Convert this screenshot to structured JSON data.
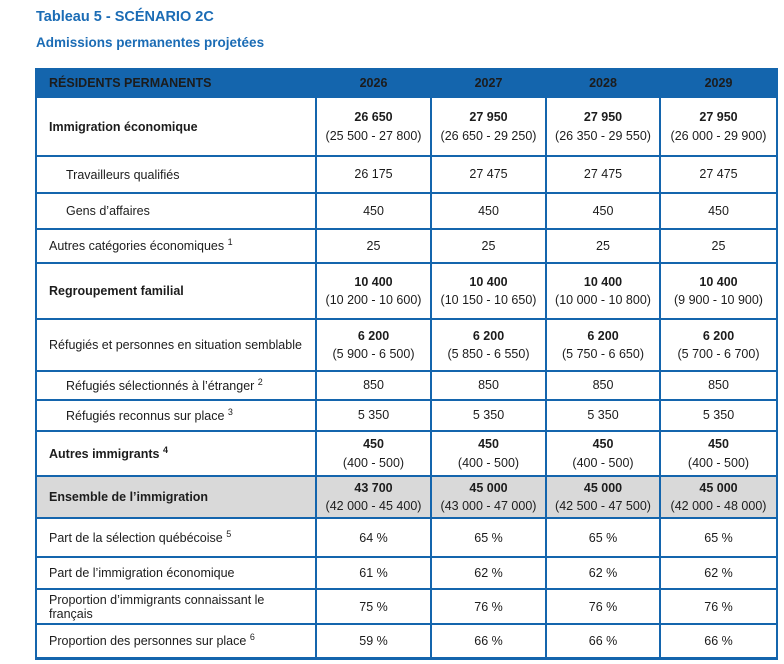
{
  "title": "Tableau 5 - SCÉNARIO 2C",
  "subtitle": "Admissions permanentes projetées",
  "colors": {
    "primary_blue": "#1465ad",
    "title_blue": "#1b6cb5",
    "gray_row": "#d9d9d9",
    "header_text": "#ffffff"
  },
  "table": {
    "header": {
      "label": "RÉSIDENTS PERMANENTS",
      "years": [
        "2026",
        "2027",
        "2028",
        "2029"
      ]
    },
    "rows": [
      {
        "label": "Immigration économique",
        "bold_label": true,
        "bold_values": true,
        "values": [
          "26 650",
          "27 950",
          "27 950",
          "27 950"
        ],
        "ranges": [
          "(25 500 - 27 800)",
          "(26 650 - 29 250)",
          "(26 350 - 29 550)",
          "(26 000 - 29 900)"
        ]
      },
      {
        "label": "Travailleurs qualifiés",
        "indent": true,
        "values": [
          "26 175",
          "27 475",
          "27 475",
          "27 475"
        ]
      },
      {
        "label": "Gens d’affaires",
        "indent": true,
        "values": [
          "450",
          "450",
          "450",
          "450"
        ]
      },
      {
        "label": "Autres catégories économiques",
        "sup": "1",
        "values": [
          "25",
          "25",
          "25",
          "25"
        ]
      },
      {
        "label": "Regroupement familial",
        "bold_label": true,
        "bold_values": true,
        "values": [
          "10 400",
          "10 400",
          "10 400",
          "10 400"
        ],
        "ranges": [
          "(10 200 - 10 600)",
          "(10 150 - 10 650)",
          "(10 000 - 10 800)",
          "(9 900 - 10 900)"
        ]
      },
      {
        "label": "Réfugiés et personnes en situation semblable",
        "bold_values": true,
        "values": [
          "6 200",
          "6 200",
          "6 200",
          "6 200"
        ],
        "ranges": [
          "(5 900 - 6 500)",
          "(5 850 - 6 550)",
          "(5 750 - 6 650)",
          "(5 700 - 6 700)"
        ]
      },
      {
        "label": "Réfugiés sélectionnés à l’étranger",
        "sup": "2",
        "indent": true,
        "values": [
          "850",
          "850",
          "850",
          "850"
        ]
      },
      {
        "label": "Réfugiés reconnus sur place",
        "sup": "3",
        "indent": true,
        "values": [
          "5 350",
          "5 350",
          "5 350",
          "5 350"
        ]
      },
      {
        "label": "Autres immigrants",
        "sup": "4",
        "bold_label": true,
        "bold_values": true,
        "values": [
          "450",
          "450",
          "450",
          "450"
        ],
        "ranges": [
          "(400 - 500)",
          "(400 - 500)",
          "(400 - 500)",
          "(400 - 500)"
        ]
      },
      {
        "label": "Ensemble de l’immigration",
        "bold_label": true,
        "bold_values": true,
        "gray": true,
        "values": [
          "43 700",
          "45 000",
          "45 000",
          "45 000"
        ],
        "ranges": [
          "(42 000 - 45 400)",
          "(43 000 - 47 000)",
          "(42 500 - 47 500)",
          "(42 000 - 48 000)"
        ]
      },
      {
        "label": "Part de la sélection québécoise",
        "sup": "5",
        "values": [
          "64 %",
          "65 %",
          "65 %",
          "65 %"
        ]
      },
      {
        "label": "Part de l’immigration économique",
        "values": [
          "61 %",
          "62 %",
          "62 %",
          "62 %"
        ]
      },
      {
        "label": "Proportion d’immigrants connaissant le français",
        "values": [
          "75 %",
          "76 %",
          "76 %",
          "76 %"
        ]
      },
      {
        "label": "Proportion des personnes sur place",
        "sup": "6",
        "values": [
          "59 %",
          "66 %",
          "66 %",
          "66 %"
        ]
      }
    ]
  }
}
